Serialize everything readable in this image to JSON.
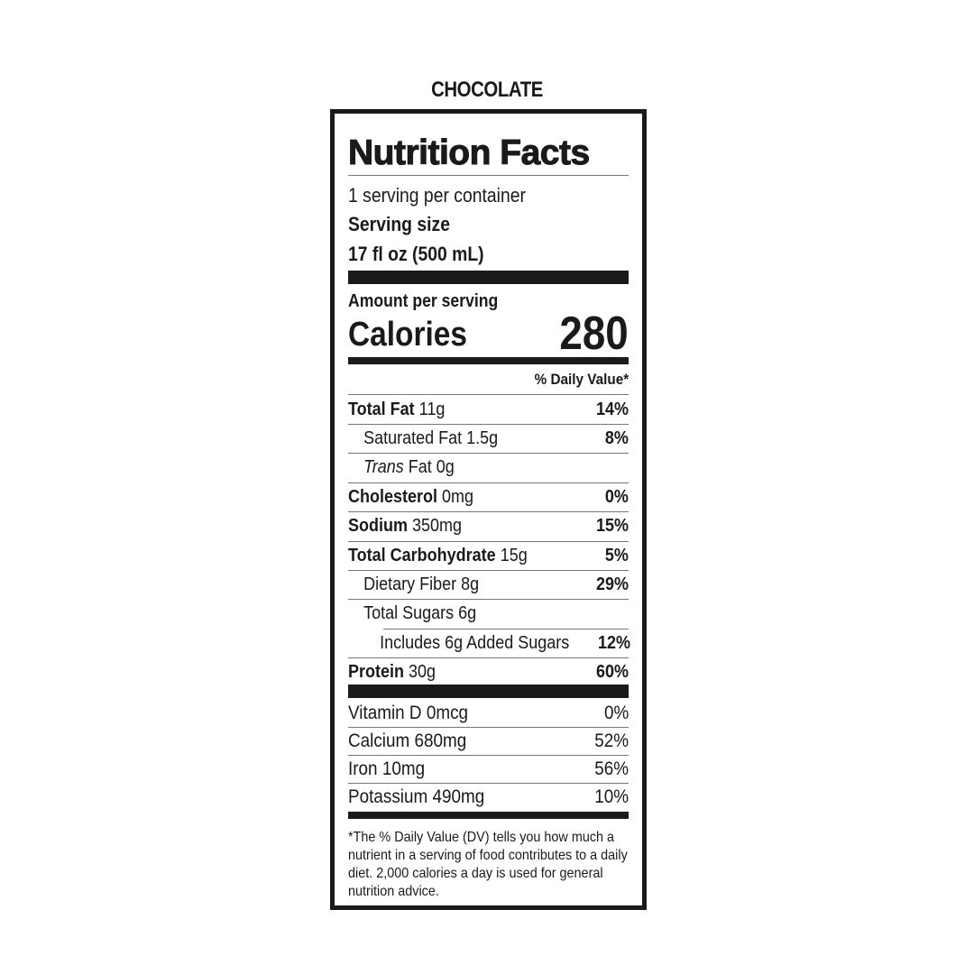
{
  "flavor": "CHOCOLATE",
  "label": {
    "title": "Nutrition Facts",
    "servings_per_container": "1 serving per container",
    "serving_size_label": "Serving size",
    "serving_size_value": "17 fl oz (500 mL)",
    "amount_per_serving": "Amount per serving",
    "calories_label": "Calories",
    "calories_value": "280",
    "dv_header": "% Daily Value*",
    "nutrients": [
      {
        "name": "Total Fat",
        "amount": "11g",
        "dv": "14%"
      },
      {
        "name": "Saturated Fat 1.5g",
        "dv": "8%"
      },
      {
        "name_italic": "Trans",
        "name": "Fat 0g",
        "dv": ""
      },
      {
        "name": "Cholesterol",
        "amount": "0mg",
        "dv": "0%"
      },
      {
        "name": "Sodium",
        "amount": "350mg",
        "dv": "15%"
      },
      {
        "name": "Total Carbohydrate",
        "amount": "15g",
        "dv": "5%"
      },
      {
        "name": "Dietary Fiber 8g",
        "dv": "29%"
      },
      {
        "name": "Total Sugars 6g",
        "dv": ""
      },
      {
        "name": "Includes 6g Added Sugars",
        "dv": "12%"
      },
      {
        "name": "Protein",
        "amount": "30g",
        "dv": "60%"
      }
    ],
    "vitamins": [
      {
        "name": "Vitamin D 0mcg",
        "dv": "0%"
      },
      {
        "name": "Calcium 680mg",
        "dv": "52%"
      },
      {
        "name": "Iron 10mg",
        "dv": "56%"
      },
      {
        "name": "Potassium 490mg",
        "dv": "10%"
      }
    ],
    "footnote": "*The % Daily Value (DV) tells you how much a nutrient in a serving of food contributes to a daily diet. 2,000 calories a day is used for general nutrition advice."
  }
}
